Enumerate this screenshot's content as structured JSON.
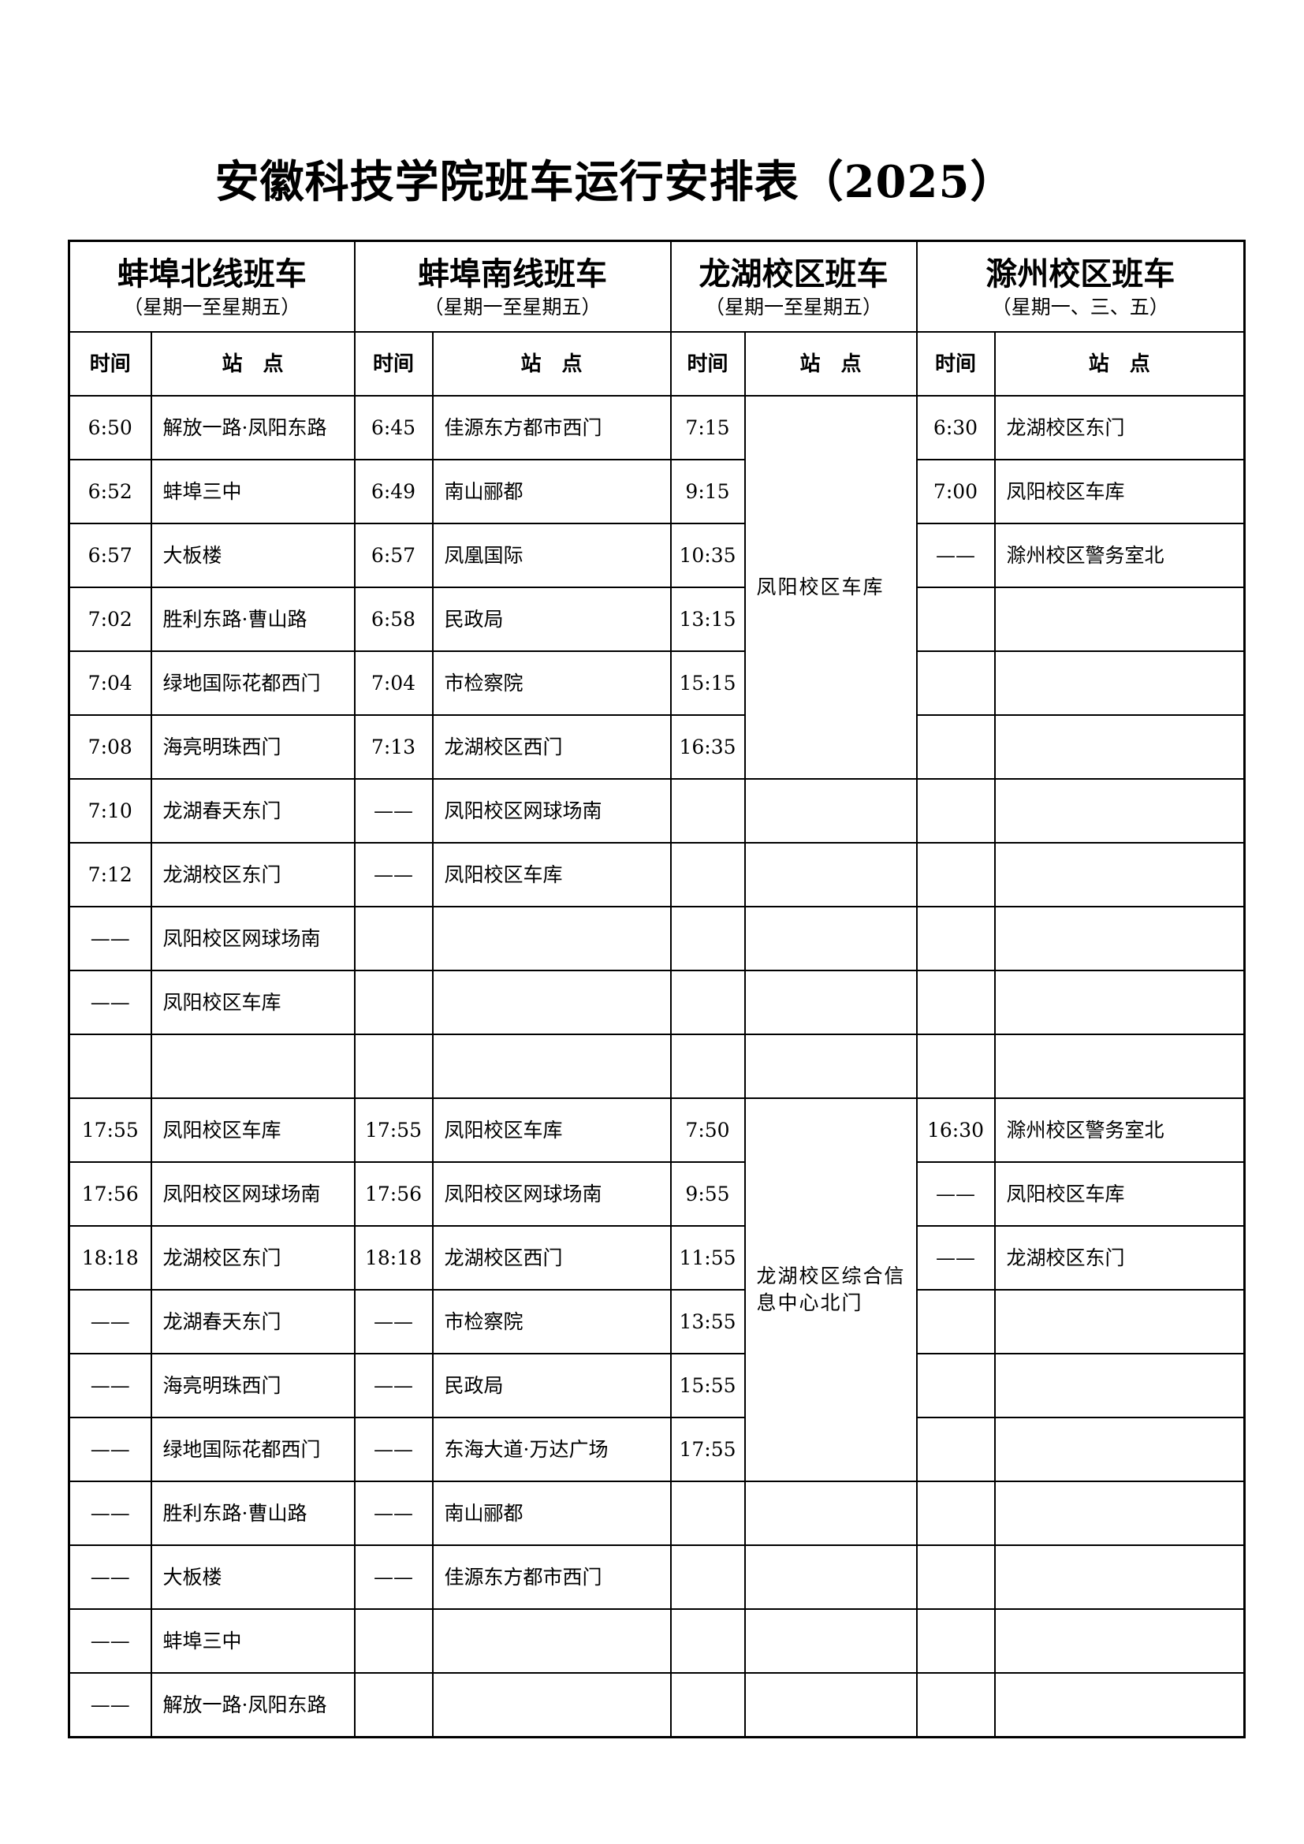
{
  "title": "安徽科技学院班车运行安排表（2025）",
  "routes": [
    {
      "name": "蚌埠北线班车",
      "days": "（星期一至星期五）"
    },
    {
      "name": "蚌埠南线班车",
      "days": "（星期一至星期五）"
    },
    {
      "name": "龙湖校区班车",
      "days": "（星期一至星期五）"
    },
    {
      "name": "滁州校区班车",
      "days": "（星期一、三、五）"
    }
  ],
  "col_time": "时间",
  "col_station": "站　点",
  "north": [
    [
      "6:50",
      "解放一路·凤阳东路"
    ],
    [
      "6:52",
      "蚌埠三中"
    ],
    [
      "6:57",
      "大板楼"
    ],
    [
      "7:02",
      "胜利东路·曹山路"
    ],
    [
      "7:04",
      "绿地国际花都西门"
    ],
    [
      "7:08",
      "海亮明珠西门"
    ],
    [
      "7:10",
      "龙湖春天东门"
    ],
    [
      "7:12",
      "龙湖校区东门"
    ],
    [
      "——",
      "凤阳校区网球场南"
    ],
    [
      "——",
      "凤阳校区车库"
    ],
    [
      "",
      ""
    ],
    [
      "17:55",
      "凤阳校区车库"
    ],
    [
      "17:56",
      "凤阳校区网球场南"
    ],
    [
      "18:18",
      "龙湖校区东门"
    ],
    [
      "——",
      "龙湖春天东门"
    ],
    [
      "——",
      "海亮明珠西门"
    ],
    [
      "——",
      "绿地国际花都西门"
    ],
    [
      "——",
      "胜利东路·曹山路"
    ],
    [
      "——",
      "大板楼"
    ],
    [
      "——",
      "蚌埠三中"
    ],
    [
      "——",
      "解放一路·凤阳东路"
    ]
  ],
  "south": [
    [
      "6:45",
      "佳源东方都市西门"
    ],
    [
      "6:49",
      "南山郦都"
    ],
    [
      "6:57",
      "凤凰国际"
    ],
    [
      "6:58",
      "民政局"
    ],
    [
      "7:04",
      "市检察院"
    ],
    [
      "7:13",
      "龙湖校区西门"
    ],
    [
      "——",
      "凤阳校区网球场南"
    ],
    [
      "——",
      "凤阳校区车库"
    ],
    [
      "",
      ""
    ],
    [
      "",
      ""
    ],
    [
      "",
      ""
    ],
    [
      "17:55",
      "凤阳校区车库"
    ],
    [
      "17:56",
      "凤阳校区网球场南"
    ],
    [
      "18:18",
      "龙湖校区西门"
    ],
    [
      "——",
      "市检察院"
    ],
    [
      "——",
      "民政局"
    ],
    [
      "——",
      "东海大道·万达广场"
    ],
    [
      "——",
      "南山郦都"
    ],
    [
      "——",
      "佳源东方都市西门"
    ],
    [
      "",
      ""
    ],
    [
      "",
      ""
    ]
  ],
  "longhu": {
    "morning_times": [
      "7:15",
      "9:15",
      "10:35",
      "13:15",
      "15:15",
      "16:35"
    ],
    "morning_station": "凤阳校区车库",
    "afternoon_times": [
      "7:50",
      "9:55",
      "11:55",
      "13:55",
      "15:55",
      "17:55"
    ],
    "afternoon_station": "龙湖校区综合信息中心北门"
  },
  "chuzhou": [
    [
      "6:30",
      "龙湖校区东门"
    ],
    [
      "7:00",
      "凤阳校区车库"
    ],
    [
      "——",
      "滁州校区警务室北"
    ],
    [
      "",
      ""
    ],
    [
      "",
      ""
    ],
    [
      "",
      ""
    ],
    [
      "",
      ""
    ],
    [
      "",
      ""
    ],
    [
      "",
      ""
    ],
    [
      "",
      ""
    ],
    [
      "",
      ""
    ],
    [
      "16:30",
      "滁州校区警务室北"
    ],
    [
      "——",
      "凤阳校区车库"
    ],
    [
      "——",
      "龙湖校区东门"
    ],
    [
      "",
      ""
    ],
    [
      "",
      ""
    ],
    [
      "",
      ""
    ],
    [
      "",
      ""
    ],
    [
      "",
      ""
    ],
    [
      "",
      ""
    ],
    [
      "",
      ""
    ]
  ]
}
